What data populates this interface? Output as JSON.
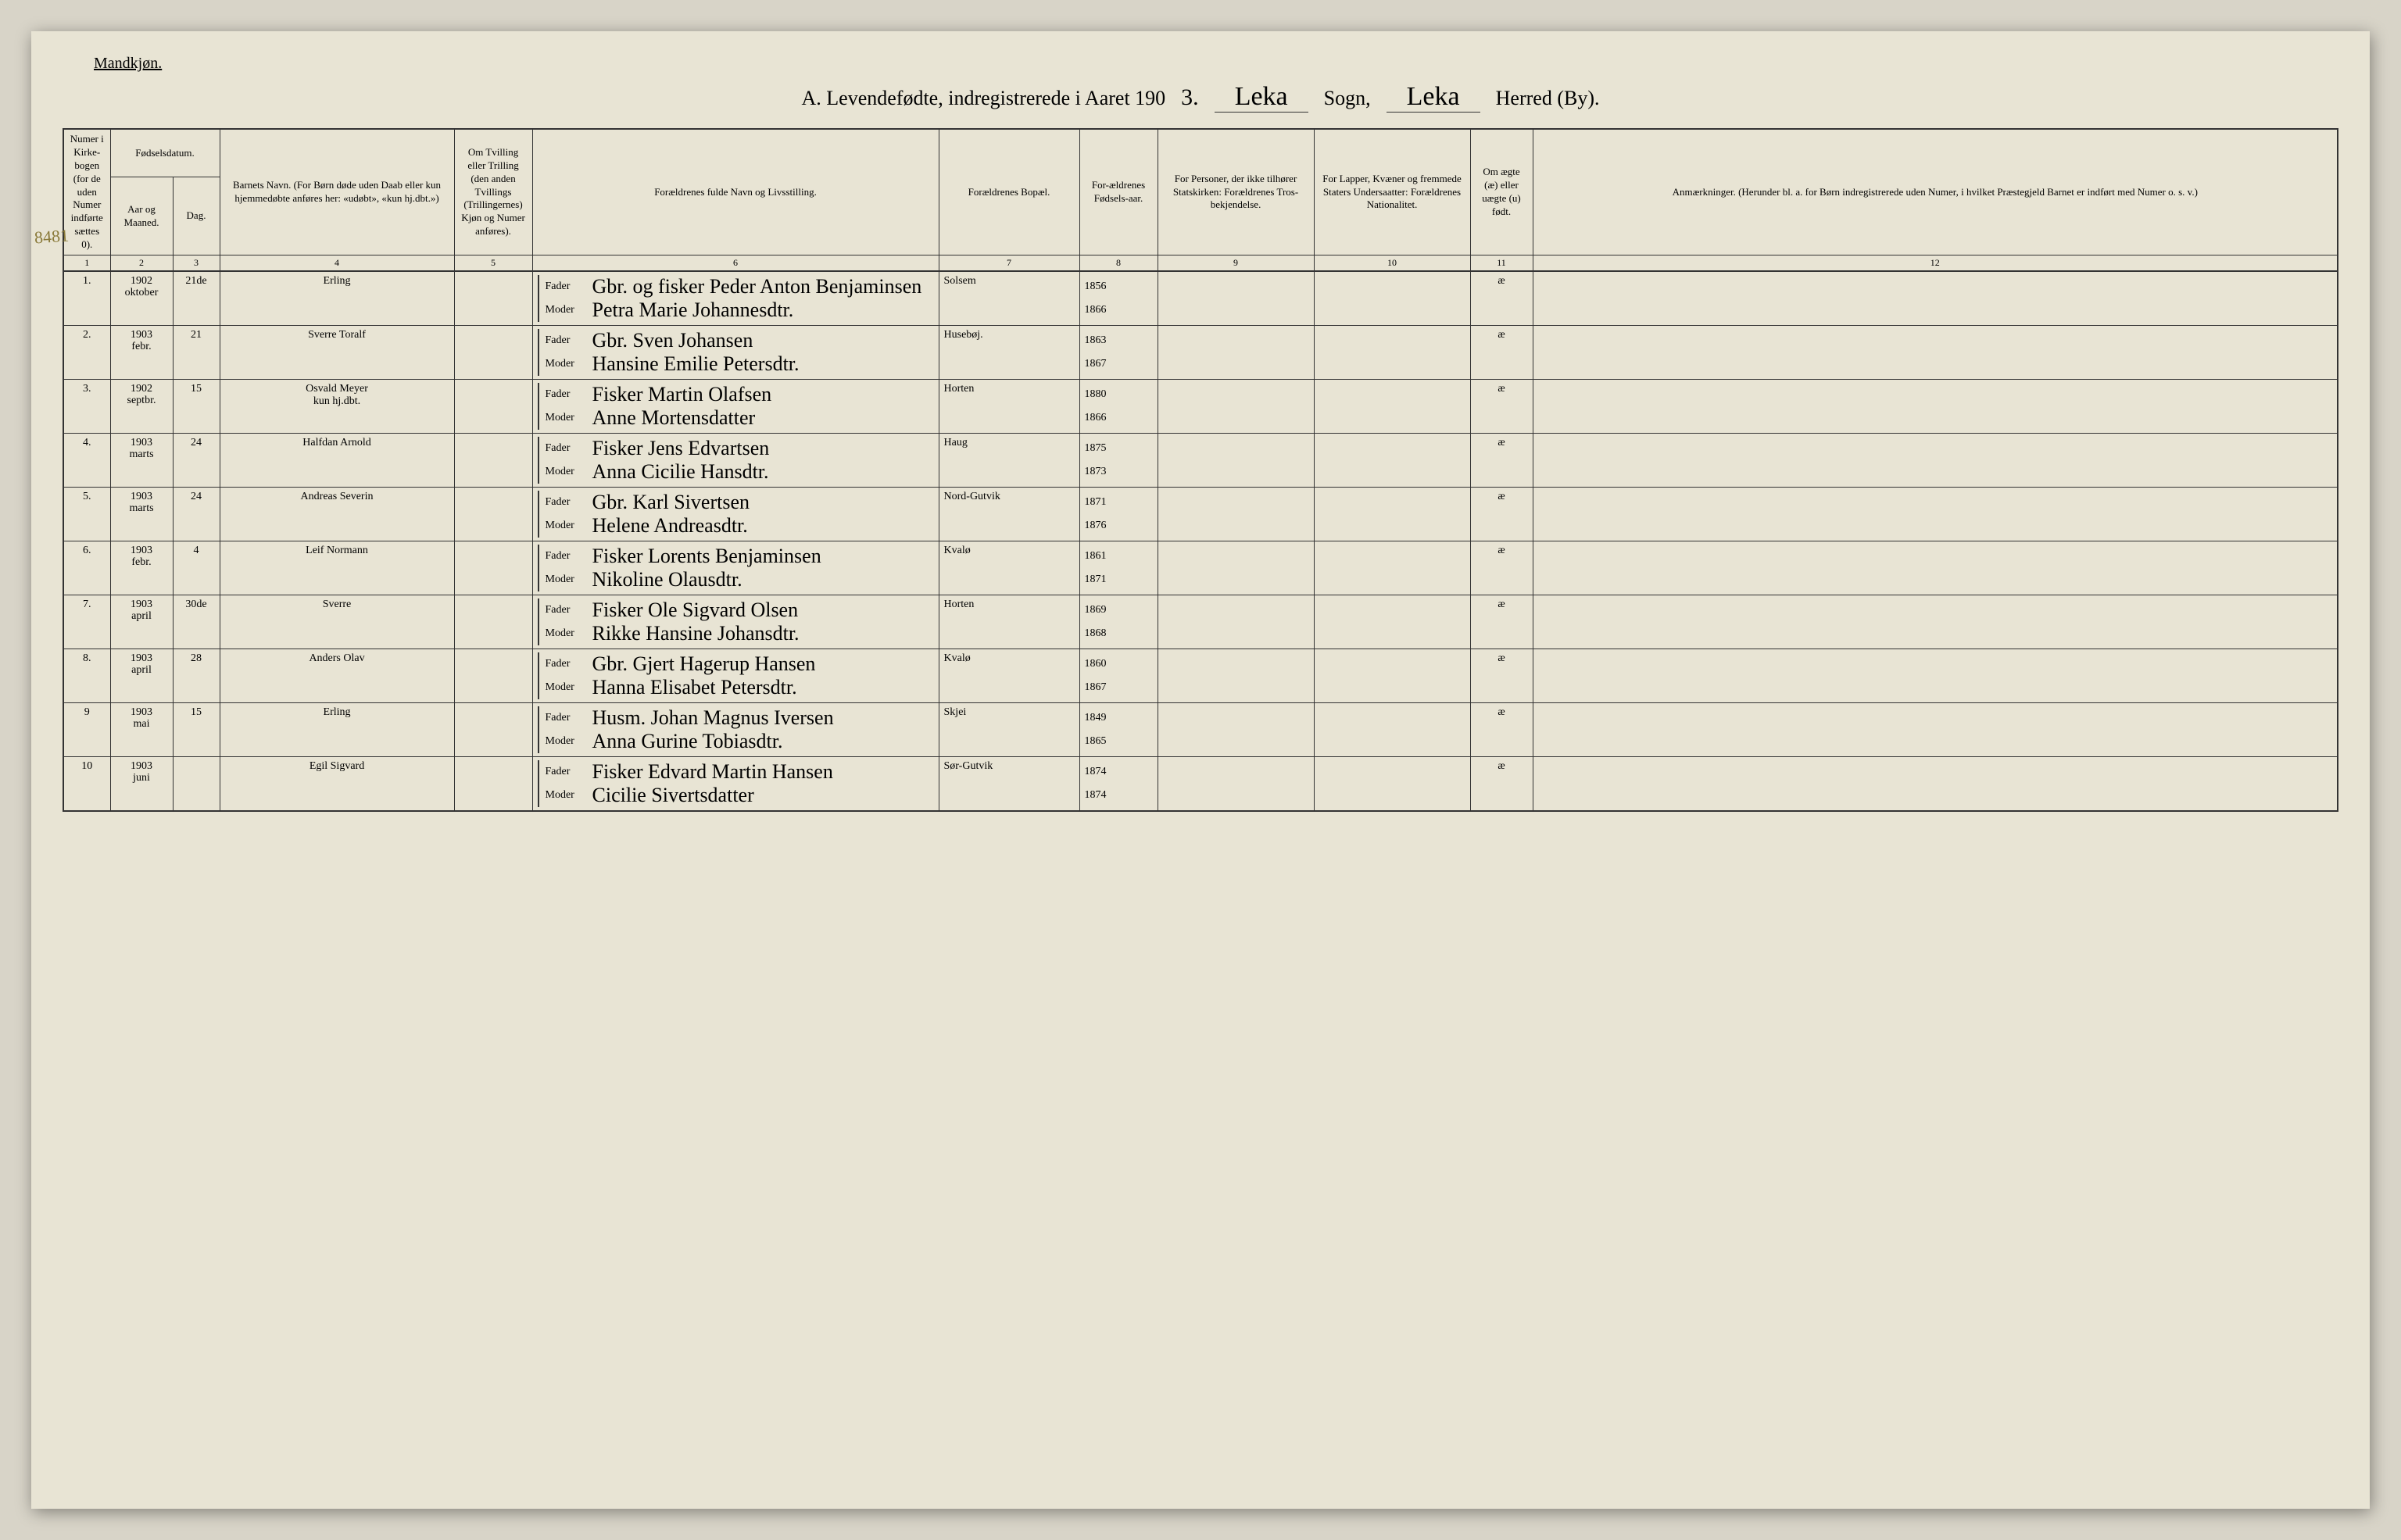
{
  "page": {
    "gender_label": "Mandkjøn.",
    "title_prefix": "A. Levendefødte, indregistrerede i Aaret 190",
    "year_suffix": "3.",
    "sogn_label": "Sogn,",
    "herred_label": "Herred (By).",
    "sogn_value": "Leka",
    "herred_value": "Leka",
    "side_annotation": "8481"
  },
  "headers": {
    "c1": "Numer i Kirke-bogen (for de uden Numer indførte sættes 0).",
    "c2_group": "Fødselsdatum.",
    "c2a": "Aar og Maaned.",
    "c2b": "Dag.",
    "c4": "Barnets Navn.\n(For Børn døde uden Daab eller kun hjemmedøbte anføres her: «udøbt», «kun hj.dbt.»)",
    "c5": "Om Tvilling eller Trilling (den anden Tvillings (Trillingernes) Kjøn og Numer anføres).",
    "c6": "Forældrenes fulde Navn og Livsstilling.",
    "c6_fader": "Fader",
    "c6_moder": "Moder",
    "c7": "Forældrenes Bopæl.",
    "c8": "For-ældrenes Fødsels-aar.",
    "c9": "For Personer, der ikke tilhører Statskirken: Forældrenes Tros-bekjendelse.",
    "c10": "For Lapper, Kvæner og fremmede Staters Undersaatter: Forældrenes Nationalitet.",
    "c11": "Om ægte (æ) eller uægte (u) født.",
    "c12": "Anmærkninger.\n(Herunder bl. a. for Børn indregistrerede uden Numer, i hvilket Præstegjeld Barnet er indført med Numer o. s. v.)"
  },
  "colnums": [
    "1",
    "2",
    "3",
    "4",
    "5",
    "6",
    "7",
    "8",
    "9",
    "10",
    "11",
    "12"
  ],
  "rows": [
    {
      "num": "1.",
      "year_month": "1902\noktober",
      "day": "21de",
      "child_name": "Erling",
      "father": "Gbr. og fisker Peder Anton Benjaminsen",
      "mother": "Petra Marie Johannesdtr.",
      "residence": "Solsem",
      "father_birth": "1856",
      "mother_birth": "1866",
      "legit": "æ"
    },
    {
      "num": "2.",
      "year_month": "1903\nfebr.",
      "day": "21",
      "child_name": "Sverre Toralf",
      "father": "Gbr. Sven Johansen",
      "mother": "Hansine Emilie Petersdtr.",
      "residence": "Husebøj.",
      "father_birth": "1863",
      "mother_birth": "1867",
      "legit": "æ"
    },
    {
      "num": "3.",
      "year_month": "1902\nseptbr.",
      "day": "15",
      "child_name": "Osvald Meyer\nkun hj.dbt.",
      "father": "Fisker Martin Olafsen",
      "mother": "Anne Mortensdatter",
      "residence": "Horten",
      "father_birth": "1880",
      "mother_birth": "1866",
      "legit": "æ"
    },
    {
      "num": "4.",
      "year_month": "1903\nmarts",
      "day": "24",
      "child_name": "Halfdan Arnold",
      "father": "Fisker Jens Edvartsen",
      "mother": "Anna Cicilie Hansdtr.",
      "residence": "Haug",
      "father_birth": "1875",
      "mother_birth": "1873",
      "legit": "æ"
    },
    {
      "num": "5.",
      "year_month": "1903\nmarts",
      "day": "24",
      "child_name": "Andreas Severin",
      "father": "Gbr. Karl Sivertsen",
      "mother": "Helene Andreasdtr.",
      "residence": "Nord-Gutvik",
      "father_birth": "1871",
      "mother_birth": "1876",
      "legit": "æ"
    },
    {
      "num": "6.",
      "year_month": "1903\nfebr.",
      "day": "4",
      "child_name": "Leif Normann",
      "father": "Fisker Lorents Benjaminsen",
      "mother": "Nikoline Olausdtr.",
      "residence": "Kvalø",
      "father_birth": "1861",
      "mother_birth": "1871",
      "legit": "æ"
    },
    {
      "num": "7.",
      "year_month": "1903\napril",
      "day": "30de",
      "child_name": "Sverre",
      "father": "Fisker Ole Sigvard Olsen",
      "mother": "Rikke Hansine Johansdtr.",
      "residence": "Horten",
      "father_birth": "1869",
      "mother_birth": "1868",
      "legit": "æ"
    },
    {
      "num": "8.",
      "year_month": "1903\napril",
      "day": "28",
      "child_name": "Anders Olav",
      "father": "Gbr. Gjert Hagerup Hansen",
      "mother": "Hanna Elisabet Petersdtr.",
      "residence": "Kvalø",
      "father_birth": "1860",
      "mother_birth": "1867",
      "legit": "æ"
    },
    {
      "num": "9",
      "year_month": "1903\nmai",
      "day": "15",
      "child_name": "Erling",
      "father": "Husm. Johan Magnus Iversen",
      "mother": "Anna Gurine Tobiasdtr.",
      "residence": "Skjei",
      "father_birth": "1849",
      "mother_birth": "1865",
      "legit": "æ"
    },
    {
      "num": "10",
      "year_month": "1903\njuni",
      "day": "",
      "child_name": "Egil Sigvard",
      "father": "Fisker Edvard Martin Hansen",
      "mother": "Cicilie Sivertsdatter",
      "residence": "Sør-Gutvik",
      "father_birth": "1874",
      "mother_birth": "1874",
      "legit": "æ"
    }
  ]
}
